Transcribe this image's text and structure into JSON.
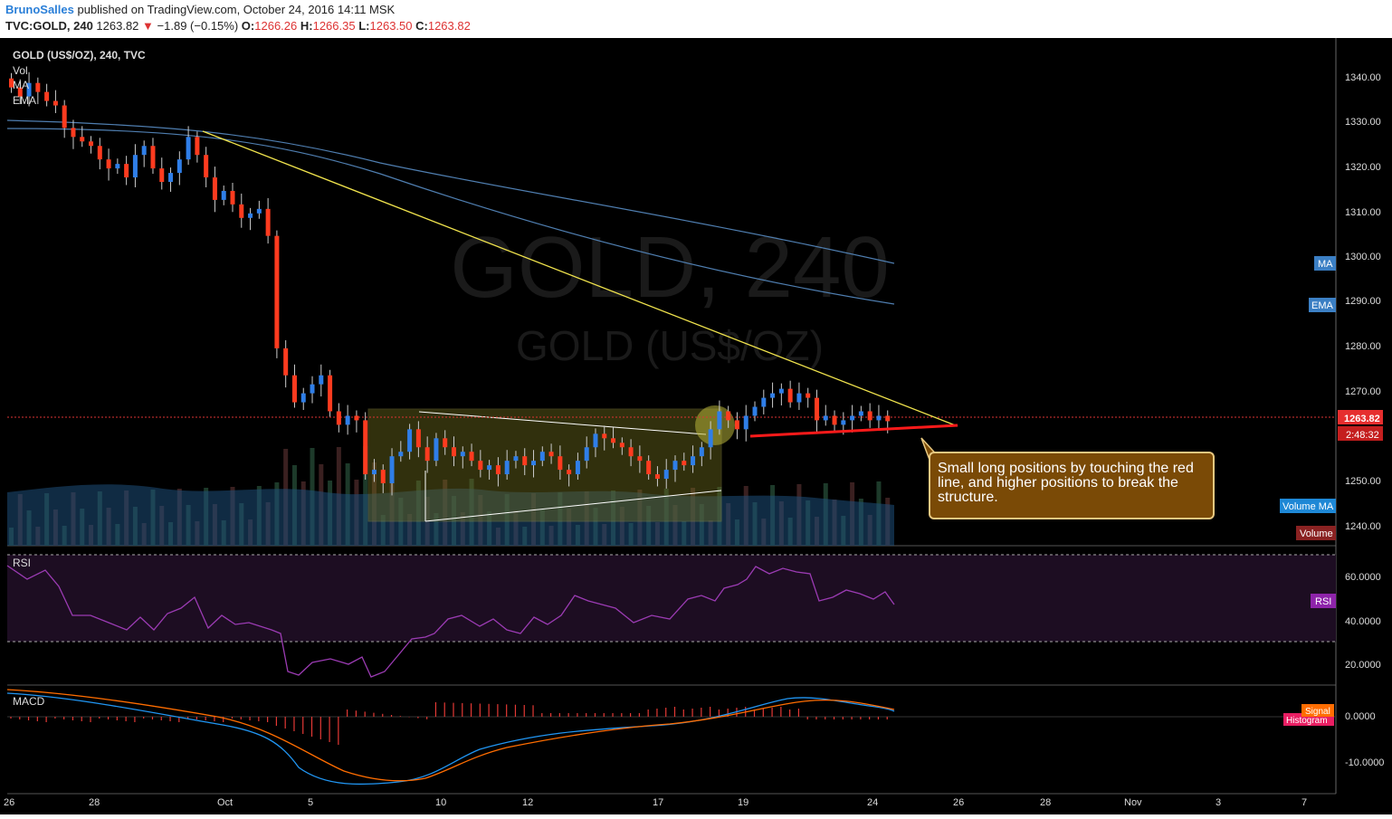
{
  "header": {
    "user": "BrunoSalles",
    "published": "published on TradingView.com, October 24, 2016 14:11 MSK",
    "symbol": "TVC:GOLD, 240",
    "last": "1263.82",
    "change": "−1.89 (−0.15%)",
    "open_label": "O:",
    "open": "1266.26",
    "high_label": "H:",
    "high": "1266.35",
    "low_label": "L:",
    "low": "1263.50",
    "close_label": "C:",
    "close": "1263.82"
  },
  "main_pane": {
    "title": "GOLD (US$/OZ), 240, TVC",
    "legend": [
      "Vol",
      "MA",
      "EMA"
    ],
    "watermark_big": "GOLD, 240",
    "watermark_small": "GOLD (US$/OZ)"
  },
  "price_axis": {
    "ticks": [
      "1340.00",
      "1330.00",
      "1320.00",
      "1310.00",
      "1300.00",
      "1290.00",
      "1280.00",
      "1270.00",
      "1250.00",
      "1240.00"
    ],
    "last_price_label": "1263.82",
    "countdown_label": "2:48:32",
    "tags": {
      "ma": "MA",
      "ema": "EMA",
      "volume_ma": "Volume MA",
      "volume": "Volume",
      "rsi": "RSI",
      "signal": "Signal",
      "histogram": "Histogram"
    }
  },
  "rsi_pane": {
    "title": "RSI",
    "ticks": [
      "60.0000",
      "40.0000",
      "20.0000"
    ]
  },
  "macd_pane": {
    "title": "MACD",
    "ticks": [
      "0.0000",
      "-10.0000"
    ]
  },
  "time_axis": {
    "labels": [
      "26",
      "28",
      "Oct",
      "5",
      "10",
      "12",
      "17",
      "19",
      "24",
      "26",
      "28",
      "Nov",
      "3",
      "7"
    ]
  },
  "annotation": {
    "text": "Small long positions by touching the red line, and higher positions to break the structure."
  },
  "colors": {
    "up": "#2f7ee8",
    "down": "#ff3b1f",
    "trendline": "#f1e44d",
    "support": "#ff1a1a",
    "ma": "#5a8fc0",
    "rsi": "#9b3bb3",
    "macd": "#2196f3",
    "signal": "#ff6d00",
    "note_bg": "#7a4a06"
  },
  "chart_data": {
    "type": "candlestick",
    "timeframe": "240",
    "price_range": [
      1235,
      1347
    ],
    "last_close": 1263.82,
    "candles_close_sample": [
      1338,
      1334,
      1327,
      1325,
      1320,
      1323,
      1318,
      1325,
      1313,
      1315,
      1309,
      1305,
      1274,
      1270,
      1266,
      1252,
      1257,
      1258,
      1262,
      1256,
      1254,
      1253,
      1255,
      1258,
      1256,
      1251,
      1252,
      1255,
      1262,
      1266,
      1269,
      1271,
      1264,
      1267,
      1265,
      1264
    ],
    "trendline_descending": {
      "from": [
        "Sep 29",
        1328
      ],
      "to": [
        "Oct 26",
        1262
      ]
    },
    "support_line": {
      "from": [
        "Oct 19",
        1260
      ],
      "to": [
        "Oct 26",
        1262
      ]
    },
    "ma_line": {
      "start": 1328,
      "end": 1298
    },
    "ema_line": {
      "start": 1331,
      "end": 1289
    },
    "rsi": {
      "levels": [
        70,
        30
      ],
      "last": 49
    },
    "macd": {
      "zero_line": 0
    }
  }
}
